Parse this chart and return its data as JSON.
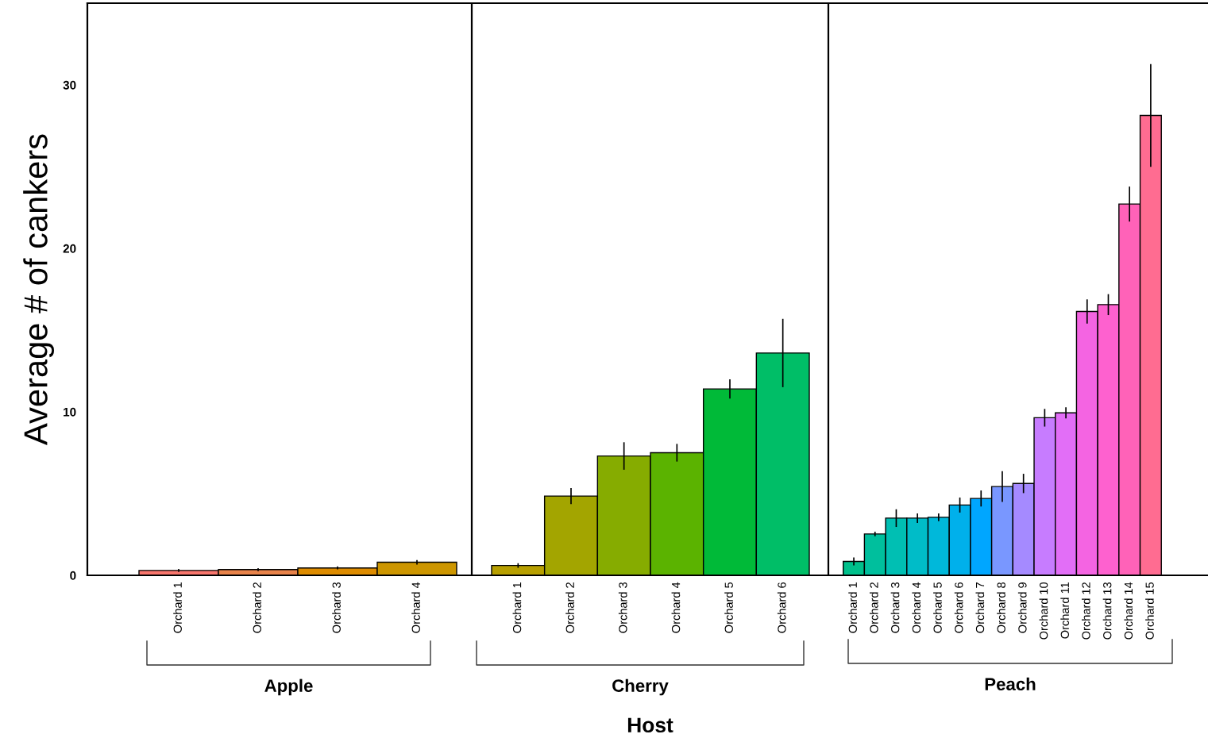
{
  "chart_data": [
    {
      "type": "bar",
      "xlabel": "Apple",
      "ylabel": "Average # of cankers",
      "categories": [
        "Orchard 1",
        "Orchard 2",
        "Orchard 3",
        "Orchard 4"
      ],
      "values": [
        0.3,
        0.35,
        0.45,
        0.8
      ],
      "errors": [
        0.05,
        0.05,
        0.05,
        0.1
      ],
      "colors": [
        "#f8766d",
        "#e8834a",
        "#de8c00",
        "#cd9600"
      ],
      "ylim": [
        0,
        35
      ],
      "yticks": [
        0,
        10,
        20,
        30
      ],
      "grid": false
    },
    {
      "type": "bar",
      "xlabel": "Cherry",
      "annotations": [
        "Host"
      ],
      "categories": [
        "Orchard 1",
        "Orchard 2",
        "Orchard 3",
        "Orchard 4",
        "Orchard 5",
        "Orchard 6"
      ],
      "values": [
        0.6,
        4.85,
        7.3,
        7.5,
        11.4,
        13.6
      ],
      "errors": [
        0.1,
        0.45,
        0.8,
        0.5,
        0.55,
        2.05
      ],
      "colors": [
        "#b79f00",
        "#a3a500",
        "#86ac00",
        "#5bb300",
        "#00ba38",
        "#00be67"
      ],
      "ylim": [
        0,
        35
      ],
      "yticks": [
        0,
        10,
        20,
        30
      ],
      "tick_labels": "x",
      "grid": false
    },
    {
      "type": "bar",
      "xlabel": "Peach",
      "categories": [
        "Orchard 1",
        "Orchard 2",
        "Orchard 3",
        "Orchard 4",
        "Orchard 5",
        "Orchard 6",
        "Orchard 7",
        "Orchard 8",
        "Orchard 9",
        "Orchard 10",
        "Orchard 11",
        "Orchard 12",
        "Orchard 13",
        "Orchard 14",
        "Orchard 15"
      ],
      "values": [
        0.85,
        2.53,
        3.5,
        3.5,
        3.55,
        4.3,
        4.7,
        5.43,
        5.62,
        9.64,
        9.94,
        16.14,
        16.56,
        22.71,
        28.13
      ],
      "errors": [
        0.2,
        0.1,
        0.5,
        0.25,
        0.2,
        0.42,
        0.45,
        0.9,
        0.55,
        0.5,
        0.3,
        0.7,
        0.6,
        1.03,
        3.1
      ],
      "colors": [
        "#00c08b",
        "#00bf9d",
        "#00bfb3",
        "#00bcc8",
        "#00b8da",
        "#00b0eb",
        "#00a6ff",
        "#7997ff",
        "#a58aff",
        "#c77cff",
        "#e26ef7",
        "#f464e2",
        "#fe61cf",
        "#ff62b8",
        "#ff6c91"
      ],
      "ylim": [
        0,
        35
      ],
      "yticks": [
        0,
        10,
        20,
        30
      ],
      "tick_labels": "x",
      "grid": false
    }
  ]
}
